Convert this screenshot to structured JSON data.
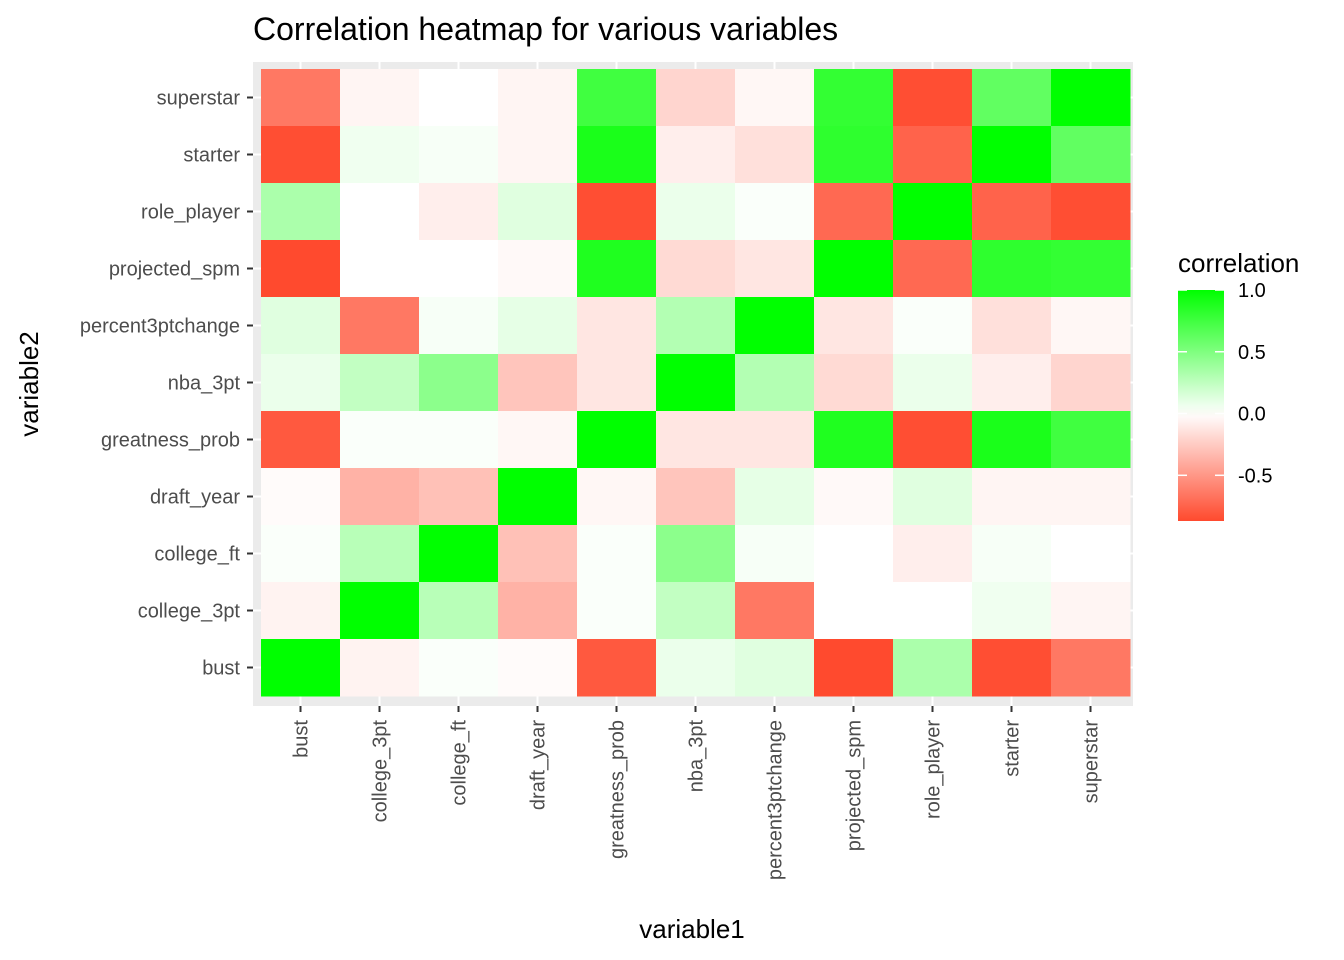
{
  "chart_data": {
    "type": "heatmap",
    "title": "Correlation heatmap for various variables",
    "xlabel": "variable1",
    "ylabel": "variable2",
    "x": [
      "bust",
      "college_3pt",
      "college_ft",
      "draft_year",
      "greatness_prob",
      "nba_3pt",
      "percent3ptchange",
      "projected_spm",
      "role_player",
      "starter",
      "superstar"
    ],
    "y": [
      "bust",
      "college_3pt",
      "college_ft",
      "draft_year",
      "greatness_prob",
      "nba_3pt",
      "percent3ptchange",
      "projected_spm",
      "role_player",
      "starter",
      "superstar"
    ],
    "values": [
      [
        1.0,
        -0.06,
        0.02,
        -0.02,
        -0.8,
        0.08,
        0.12,
        -0.87,
        0.33,
        -0.85,
        -0.65
      ],
      [
        -0.06,
        1.0,
        0.28,
        -0.37,
        0.02,
        0.24,
        -0.65,
        0.0,
        0.0,
        0.06,
        -0.05
      ],
      [
        0.02,
        0.28,
        1.0,
        -0.3,
        0.02,
        0.45,
        0.03,
        0.0,
        -0.08,
        0.03,
        0.0
      ],
      [
        -0.02,
        -0.37,
        -0.3,
        1.0,
        -0.04,
        -0.28,
        0.1,
        -0.03,
        0.12,
        -0.05,
        -0.05
      ],
      [
        -0.8,
        0.02,
        0.02,
        -0.04,
        1.0,
        -0.12,
        -0.12,
        0.88,
        -0.85,
        0.9,
        0.75
      ],
      [
        0.08,
        0.24,
        0.45,
        -0.28,
        -0.12,
        1.0,
        0.3,
        -0.18,
        0.08,
        -0.08,
        -0.2
      ],
      [
        0.12,
        -0.65,
        0.03,
        0.1,
        -0.12,
        0.3,
        1.0,
        -0.12,
        0.02,
        -0.15,
        -0.04
      ],
      [
        -0.87,
        0.0,
        0.0,
        -0.03,
        0.88,
        -0.18,
        -0.12,
        1.0,
        -0.72,
        0.82,
        0.8
      ],
      [
        0.33,
        0.0,
        -0.08,
        0.12,
        -0.85,
        0.08,
        0.02,
        -0.72,
        1.0,
        -0.75,
        -0.85
      ],
      [
        -0.85,
        0.06,
        0.03,
        -0.05,
        0.9,
        -0.08,
        -0.15,
        0.82,
        -0.75,
        1.0,
        0.62
      ],
      [
        -0.65,
        -0.05,
        0.0,
        -0.05,
        0.75,
        -0.2,
        -0.04,
        0.8,
        -0.85,
        0.62,
        1.0
      ]
    ],
    "legend": {
      "title": "correlation",
      "ticks": [
        1.0,
        0.5,
        0.0,
        -0.5
      ],
      "tick_labels": [
        "1.0",
        "0.5",
        "0.0",
        "-0.5"
      ],
      "range": [
        -0.87,
        1.0
      ],
      "placement": "right"
    },
    "colors": {
      "low": "#ff4a2e",
      "mid": "#ffffff",
      "high": "#00ff00",
      "panel": "#ebebeb",
      "grid": "#ffffff"
    },
    "grid": true
  }
}
